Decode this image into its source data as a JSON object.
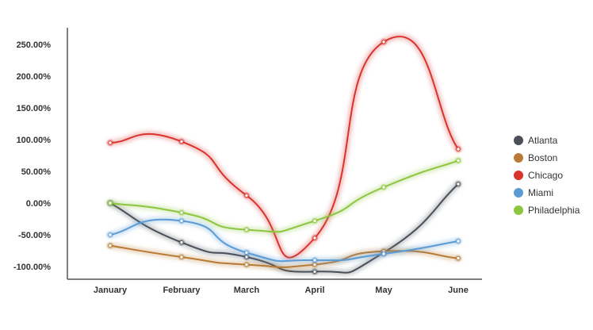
{
  "chart_data": {
    "type": "line",
    "categories": [
      "January",
      "February",
      "March",
      "April",
      "May",
      "June"
    ],
    "series": [
      {
        "name": "Atlanta",
        "color": "#4a4f5a",
        "values": [
          0,
          -62,
          -85,
          -108,
          -78,
          30
        ]
      },
      {
        "name": "Boston",
        "color": "#b87a34",
        "values": [
          -67,
          -85,
          -97,
          -97,
          -76,
          -87
        ]
      },
      {
        "name": "Chicago",
        "color": "#d9332b",
        "values": [
          95,
          97,
          12,
          -55,
          254,
          85
        ]
      },
      {
        "name": "Miami",
        "color": "#5b9bd5",
        "values": [
          -50,
          -28,
          -78,
          -90,
          -80,
          -60
        ]
      },
      {
        "name": "Philadelphia",
        "color": "#8cc63f",
        "values": [
          0,
          -15,
          -42,
          -28,
          25,
          67
        ]
      }
    ],
    "y_ticks": [
      "250.00%",
      "200.00%",
      "150.00%",
      "100.00%",
      "50.00%",
      "0.00%",
      "-50.00%",
      "-100.00%"
    ],
    "y_tick_values": [
      250,
      200,
      150,
      100,
      50,
      0,
      -50,
      -100
    ],
    "ylim": [
      -115,
      280
    ],
    "title": "",
    "xlabel": "",
    "ylabel": "",
    "grid": false,
    "legend_position": "right"
  }
}
